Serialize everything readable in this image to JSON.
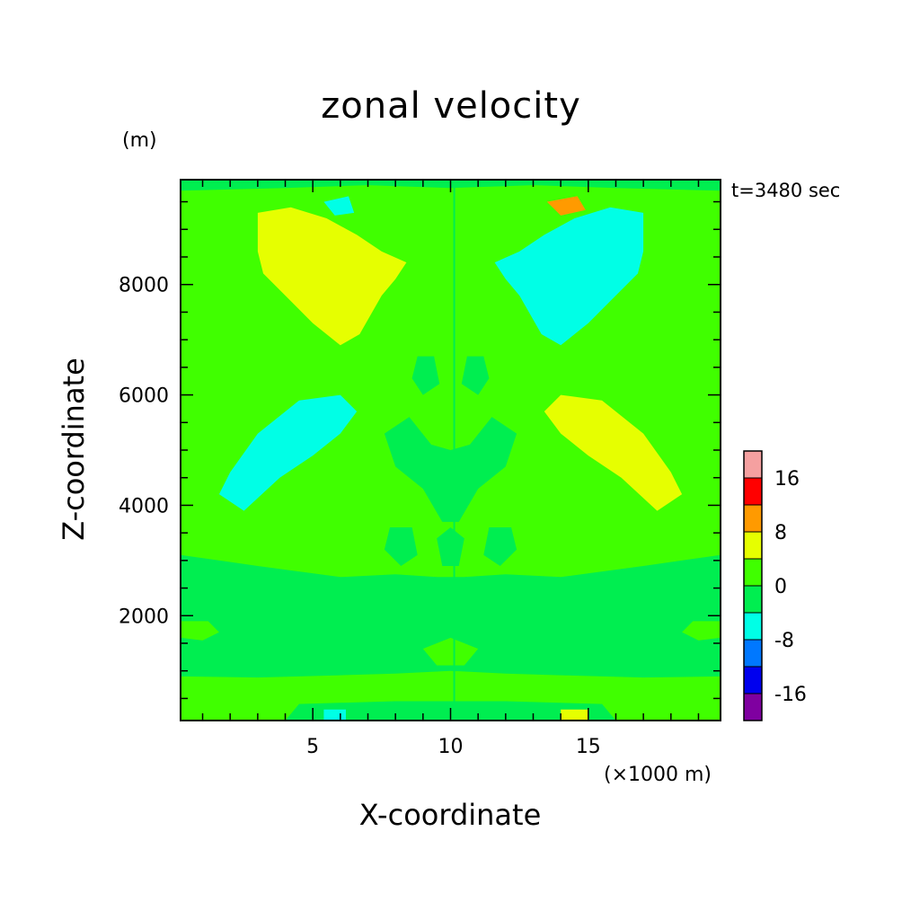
{
  "chart_data": {
    "type": "heatmap",
    "title": "zonal velocity",
    "xlabel": "X-coordinate",
    "ylabel": "Z-coordinate",
    "x_unit": "(×1000 m)",
    "y_unit": "(m)",
    "time_label": "t=3480 sec",
    "xlim": [
      0.2,
      19.8
    ],
    "ylim": [
      100,
      9900
    ],
    "x_ticks": [
      "5",
      "10",
      "15"
    ],
    "x_tick_values": [
      5,
      10,
      15
    ],
    "y_ticks": [
      "2000",
      "4000",
      "6000",
      "8000"
    ],
    "y_tick_values": [
      2000,
      4000,
      6000,
      8000
    ],
    "colorbar": {
      "labels": [
        "16",
        "8",
        "0",
        "-8",
        "-16"
      ],
      "label_values": [
        16,
        8,
        0,
        -8,
        -16
      ],
      "levels": [
        -20,
        -16,
        -12,
        -8,
        -4,
        0,
        4,
        8,
        12,
        16,
        20
      ],
      "colors": [
        "#7f00a0",
        "#0000ee",
        "#0078ff",
        "#00ffe6",
        "#00ee50",
        "#40ff00",
        "#e6ff00",
        "#ff9a00",
        "#ff0000",
        "#f5a0a0"
      ]
    },
    "background_level_color": "#40ff00",
    "features": [
      {
        "sign": "positive",
        "color": "#e6ff00",
        "x": [
          3.0,
          8.0
        ],
        "z": [
          6900,
          9400
        ],
        "approx_value": 6
      },
      {
        "sign": "negative",
        "color": "#00ffe6",
        "x": [
          12.0,
          17.0
        ],
        "z": [
          6900,
          9400
        ],
        "approx_value": -6
      },
      {
        "sign": "negative",
        "color": "#00ffe6",
        "x": [
          1.5,
          6.5
        ],
        "z": [
          3900,
          6000
        ],
        "approx_value": -6
      },
      {
        "sign": "positive",
        "color": "#e6ff00",
        "x": [
          13.5,
          18.5
        ],
        "z": [
          3900,
          6000
        ],
        "approx_value": 6
      },
      {
        "sign": "weak-negative",
        "color": "#00ee50",
        "x": [
          0.2,
          19.8
        ],
        "z": [
          900,
          3100
        ],
        "approx_value": -2
      },
      {
        "sign": "weak-negative",
        "color": "#00ee50",
        "x": [
          0.2,
          19.8
        ],
        "z": [
          9700,
          9900
        ],
        "approx_value": -2
      }
    ]
  }
}
